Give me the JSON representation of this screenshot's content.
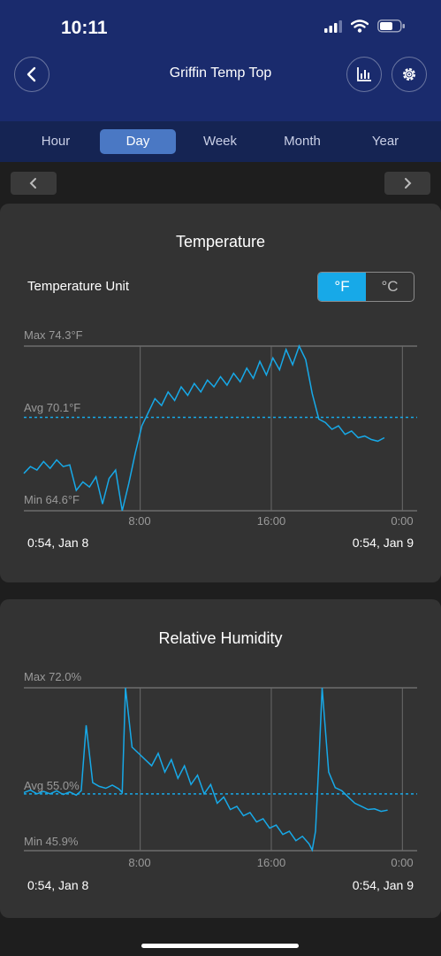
{
  "status_bar": {
    "time": "10:11"
  },
  "header": {
    "title": "Griffin Temp Top",
    "back_icon": "chevron-left-icon",
    "chart_icon": "bar-chart-icon",
    "settings_icon": "gear-icon"
  },
  "tabs": [
    {
      "label": "Hour",
      "active": false
    },
    {
      "label": "Day",
      "active": true
    },
    {
      "label": "Week",
      "active": false
    },
    {
      "label": "Month",
      "active": false
    },
    {
      "label": "Year",
      "active": false
    }
  ],
  "colors": {
    "line": "#17a9e8",
    "header": "#1a2b6d",
    "tabbar": "#152453",
    "active_tab": "#4a78c4"
  },
  "temperature": {
    "title": "Temperature",
    "unit_label": "Temperature Unit",
    "unit_f": "°F",
    "unit_c": "°C",
    "selected_unit": "°F",
    "max_label": "Max 74.3°F",
    "avg_label": "Avg 70.1°F",
    "min_label": "Min 64.6°F",
    "ticks": [
      "8:00",
      "16:00",
      "0:00"
    ],
    "range_start": "0:54,  Jan 8",
    "range_end": "0:54,  Jan 9"
  },
  "humidity": {
    "title": "Relative Humidity",
    "max_label": "Max 72.0%",
    "avg_label": "Avg 55.0%",
    "min_label": "Min 45.9%",
    "ticks": [
      "8:00",
      "16:00",
      "0:00"
    ],
    "range_start": "0:54,  Jan 8",
    "range_end": "0:54,  Jan 9"
  },
  "chart_data": [
    {
      "type": "line",
      "title": "Temperature",
      "ylim": [
        64.6,
        74.3
      ],
      "xlim": [
        0.9,
        24.9
      ],
      "x_ticks": [
        "8:00",
        "16:00",
        "0:00"
      ],
      "series": [
        {
          "x": [
            0.9,
            1.3,
            1.7,
            2.1,
            2.5,
            2.9,
            3.3,
            3.7,
            4.1,
            4.5,
            4.9,
            5.3,
            5.7,
            6.1,
            6.5,
            6.9,
            7.3,
            7.7,
            8.1,
            8.5,
            8.9,
            9.3,
            9.7,
            10.1,
            10.5,
            10.9,
            11.3,
            11.7,
            12.1,
            12.5,
            12.9,
            13.3,
            13.7,
            14.1,
            14.5,
            14.9,
            15.3,
            15.7,
            16.1,
            16.5,
            16.9,
            17.3,
            17.7,
            18.1,
            18.5,
            18.9,
            19.3,
            19.7,
            20.1,
            20.5,
            20.9,
            21.3,
            21.7,
            22.1,
            22.5,
            22.9
          ],
          "y": [
            66.8,
            67.2,
            67.0,
            67.5,
            67.1,
            67.6,
            67.2,
            67.3,
            65.8,
            66.3,
            66.0,
            66.6,
            65.0,
            66.5,
            67.0,
            64.6,
            66.2,
            68.0,
            69.6,
            70.4,
            71.2,
            70.8,
            71.6,
            71.1,
            71.9,
            71.4,
            72.1,
            71.6,
            72.3,
            71.9,
            72.5,
            72.0,
            72.7,
            72.2,
            73.0,
            72.4,
            73.4,
            72.6,
            73.6,
            72.9,
            74.1,
            73.2,
            74.3,
            73.5,
            71.5,
            70.0,
            69.8,
            69.4,
            69.6,
            69.1,
            69.3,
            68.9,
            69.0,
            68.8,
            68.7,
            68.9
          ]
        }
      ]
    },
    {
      "type": "line",
      "title": "Relative Humidity",
      "ylim": [
        45.9,
        72.0
      ],
      "xlim": [
        0.9,
        24.9
      ],
      "x_ticks": [
        "8:00",
        "16:00",
        "0:00"
      ],
      "series": [
        {
          "x": [
            0.9,
            1.3,
            1.7,
            2.1,
            2.5,
            2.9,
            3.3,
            3.7,
            4.1,
            4.4,
            4.7,
            5.1,
            5.5,
            5.9,
            6.3,
            6.7,
            6.9,
            7.1,
            7.5,
            7.9,
            8.3,
            8.7,
            9.1,
            9.5,
            9.9,
            10.3,
            10.7,
            11.1,
            11.5,
            11.9,
            12.3,
            12.7,
            13.1,
            13.5,
            13.9,
            14.3,
            14.7,
            15.1,
            15.5,
            15.9,
            16.3,
            16.7,
            17.1,
            17.5,
            17.9,
            18.3,
            18.5,
            18.7,
            18.9,
            19.1,
            19.5,
            19.9,
            20.3,
            20.7,
            21.1,
            21.5,
            21.9,
            22.3,
            22.7,
            23.1
          ],
          "y": [
            55.2,
            55.6,
            55.0,
            55.4,
            55.0,
            55.5,
            54.9,
            55.3,
            54.8,
            55.5,
            66.0,
            56.8,
            56.2,
            55.9,
            56.4,
            55.8,
            55.2,
            72.0,
            62.5,
            61.5,
            60.5,
            59.5,
            61.5,
            58.5,
            60.5,
            57.5,
            59.5,
            56.5,
            58.0,
            55.0,
            56.5,
            53.5,
            54.5,
            52.5,
            53.0,
            51.5,
            52.0,
            50.5,
            51.0,
            49.5,
            50.0,
            48.5,
            49.0,
            47.5,
            48.2,
            47.0,
            46.0,
            49.0,
            60.0,
            72.0,
            58.5,
            56.0,
            55.5,
            54.5,
            53.5,
            53.0,
            52.5,
            52.6,
            52.2,
            52.4
          ]
        }
      ]
    }
  ]
}
